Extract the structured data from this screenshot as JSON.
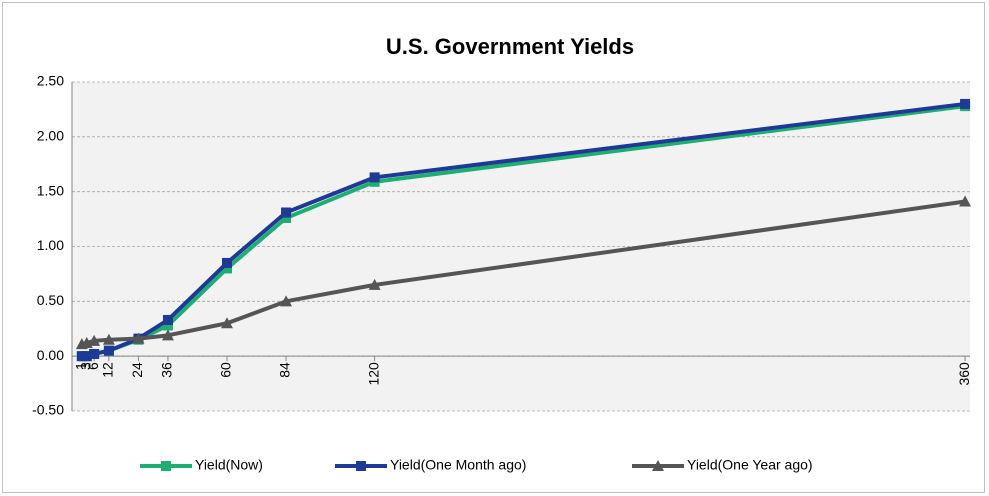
{
  "chart_data": {
    "type": "line",
    "title": "U.S. Government Yields",
    "x": [
      1,
      3,
      6,
      12,
      24,
      36,
      60,
      84,
      120,
      360
    ],
    "xticks": [
      1,
      3,
      6,
      12,
      24,
      36,
      60,
      84,
      120,
      360
    ],
    "xlim": [
      -3,
      362
    ],
    "ylim": [
      -0.5,
      2.5
    ],
    "yticks": [
      {
        "value": -0.5,
        "label": "-0.50"
      },
      {
        "value": 0,
        "label": "0.00"
      },
      {
        "value": 0.5,
        "label": "0.50"
      },
      {
        "value": 1,
        "label": "1.00"
      },
      {
        "value": 1.5,
        "label": "1.50"
      },
      {
        "value": 2,
        "label": "2.00"
      },
      {
        "value": 2.5,
        "label": "2.50"
      }
    ],
    "grid": true,
    "legend": "bottom",
    "series": [
      {
        "name": "Yield(Now)",
        "color": "#1fae72",
        "marker": "square",
        "values": [
          0.0,
          0.0,
          0.02,
          0.05,
          0.15,
          0.28,
          0.8,
          1.26,
          1.59,
          2.28
        ]
      },
      {
        "name": "Yield(One Month ago)",
        "color": "#1f3a96",
        "marker": "square",
        "values": [
          0.0,
          0.0,
          0.02,
          0.05,
          0.16,
          0.33,
          0.85,
          1.31,
          1.63,
          2.3
        ]
      },
      {
        "name": "Yield(One Year ago)",
        "color": "#555555",
        "marker": "triangle",
        "values": [
          0.11,
          0.12,
          0.14,
          0.15,
          0.16,
          0.19,
          0.3,
          0.5,
          0.65,
          1.41
        ]
      }
    ]
  }
}
